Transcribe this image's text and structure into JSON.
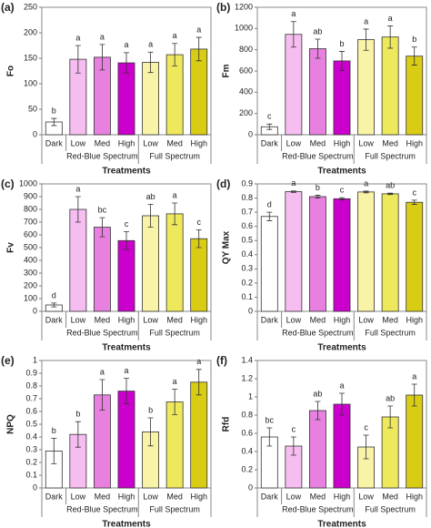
{
  "chart_data": [
    {
      "type": "bar",
      "panel": "(a)",
      "ylabel": "Fo",
      "xlabel": "Treatments",
      "categories": [
        "Dark",
        "Low",
        "Med",
        "High",
        "Low",
        "Med",
        "High"
      ],
      "groups": [
        "Red-Blue Spectrum",
        "Full Spectrum"
      ],
      "values": [
        25,
        148,
        152,
        141,
        142,
        157,
        168
      ],
      "errors": [
        7,
        27,
        25,
        20,
        20,
        22,
        23
      ],
      "letters": [
        "b",
        "a",
        "a",
        "a",
        "a",
        "a",
        "a"
      ],
      "colors": [
        "#ffffff",
        "#f6bdf0",
        "#e780de",
        "#cc00cc",
        "#f8f3a6",
        "#eee85c",
        "#d9cc14"
      ],
      "ylim": [
        0,
        250
      ],
      "yticks": [
        0,
        50,
        100,
        150,
        200,
        250
      ]
    },
    {
      "type": "bar",
      "panel": "(b)",
      "ylabel": "Fm",
      "xlabel": "Treatments",
      "categories": [
        "Dark",
        "Low",
        "Med",
        "High",
        "Low",
        "Med",
        "High"
      ],
      "groups": [
        "Red-Blue Spectrum",
        "Full Spectrum"
      ],
      "values": [
        75,
        945,
        810,
        695,
        895,
        920,
        740
      ],
      "errors": [
        25,
        120,
        90,
        90,
        100,
        105,
        85
      ],
      "letters": [
        "c",
        "a",
        "ab",
        "b",
        "a",
        "a",
        "b"
      ],
      "colors": [
        "#ffffff",
        "#f6bdf0",
        "#e780de",
        "#cc00cc",
        "#f8f3a6",
        "#eee85c",
        "#d9cc14"
      ],
      "ylim": [
        0,
        1200
      ],
      "yticks": [
        0,
        200,
        400,
        600,
        800,
        1000,
        1200
      ]
    },
    {
      "type": "bar",
      "panel": "(c)",
      "ylabel": "Fv",
      "xlabel": "Treatments",
      "categories": [
        "Dark",
        "Low",
        "Med",
        "High",
        "Low",
        "Med",
        "High"
      ],
      "groups": [
        "Red-Blue Spectrum",
        "Full Spectrum"
      ],
      "values": [
        50,
        800,
        660,
        555,
        750,
        765,
        570
      ],
      "errors": [
        15,
        100,
        75,
        70,
        90,
        85,
        70
      ],
      "letters": [
        "d",
        "a",
        "bc",
        "c",
        "ab",
        "a",
        "c"
      ],
      "colors": [
        "#ffffff",
        "#f6bdf0",
        "#e780de",
        "#cc00cc",
        "#f8f3a6",
        "#eee85c",
        "#d9cc14"
      ],
      "ylim": [
        0,
        1000
      ],
      "yticks": [
        0,
        100,
        200,
        300,
        400,
        500,
        600,
        700,
        800,
        900,
        1000
      ]
    },
    {
      "type": "bar",
      "panel": "(d)",
      "ylabel": "QY Max",
      "xlabel": "Treatments",
      "categories": [
        "Dark",
        "Low",
        "Med",
        "High",
        "Low",
        "Med",
        "High"
      ],
      "groups": [
        "Red-Blue Spectrum",
        "Full Spectrum"
      ],
      "values": [
        0.67,
        0.845,
        0.81,
        0.795,
        0.843,
        0.83,
        0.77
      ],
      "errors": [
        0.03,
        0.005,
        0.01,
        0.008,
        0.006,
        0.005,
        0.015
      ],
      "letters": [
        "d",
        "a",
        "b",
        "c",
        "a",
        "ab",
        "c"
      ],
      "colors": [
        "#ffffff",
        "#f6bdf0",
        "#e780de",
        "#cc00cc",
        "#f8f3a6",
        "#eee85c",
        "#d9cc14"
      ],
      "ylim": [
        0,
        0.9
      ],
      "yticks": [
        0,
        0.1,
        0.2,
        0.3,
        0.4,
        0.5,
        0.6,
        0.7,
        0.8,
        0.9
      ]
    },
    {
      "type": "bar",
      "panel": "(e)",
      "ylabel": "NPQ",
      "xlabel": "Treatments",
      "categories": [
        "Dark",
        "Low",
        "Med",
        "High",
        "Low",
        "Med",
        "High"
      ],
      "groups": [
        "Red-Blue Spectrum",
        "Full Spectrum"
      ],
      "values": [
        0.29,
        0.42,
        0.73,
        0.76,
        0.44,
        0.675,
        0.83
      ],
      "errors": [
        0.1,
        0.1,
        0.12,
        0.1,
        0.11,
        0.1,
        0.1
      ],
      "letters": [
        "b",
        "b",
        "a",
        "a",
        "b",
        "a",
        "a"
      ],
      "colors": [
        "#ffffff",
        "#f6bdf0",
        "#e780de",
        "#cc00cc",
        "#f8f3a6",
        "#eee85c",
        "#d9cc14"
      ],
      "ylim": [
        0,
        1
      ],
      "yticks": [
        0,
        0.1,
        0.2,
        0.3,
        0.4,
        0.5,
        0.6,
        0.7,
        0.8,
        0.9,
        1
      ]
    },
    {
      "type": "bar",
      "panel": "(f)",
      "ylabel": "Rfd",
      "xlabel": "Treatments",
      "categories": [
        "Dark",
        "Low",
        "Med",
        "High",
        "Low",
        "Med",
        "High"
      ],
      "groups": [
        "Red-Blue Spectrum",
        "Full Spectrum"
      ],
      "values": [
        0.56,
        0.46,
        0.85,
        0.92,
        0.45,
        0.78,
        1.02
      ],
      "errors": [
        0.1,
        0.1,
        0.1,
        0.12,
        0.13,
        0.12,
        0.12
      ],
      "letters": [
        "bc",
        "c",
        "ab",
        "a",
        "c",
        "ab",
        "a"
      ],
      "colors": [
        "#ffffff",
        "#f6bdf0",
        "#e780de",
        "#cc00cc",
        "#f8f3a6",
        "#eee85c",
        "#d9cc14"
      ],
      "ylim": [
        0,
        1.4
      ],
      "yticks": [
        0,
        0.2,
        0.4,
        0.6,
        0.8,
        1,
        1.2,
        1.4
      ]
    }
  ]
}
